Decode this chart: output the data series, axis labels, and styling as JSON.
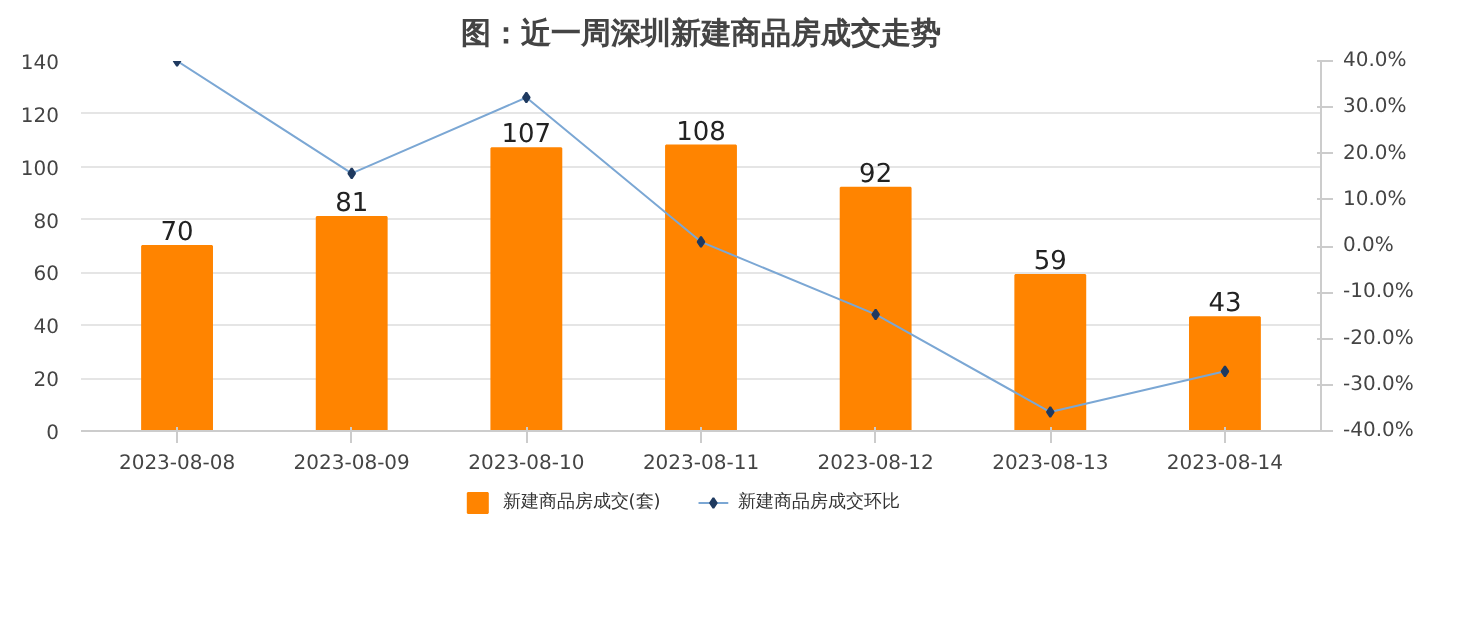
{
  "chart_data": {
    "type": "bar",
    "title": "图：近一周深圳新建商品房成交走势",
    "categories": [
      "2023-08-08",
      "2023-08-09",
      "2023-08-10",
      "2023-08-11",
      "2023-08-12",
      "2023-08-13",
      "2023-08-14"
    ],
    "series": [
      {
        "name": "新建商品房成交(套)",
        "color": "#ff8400",
        "values": [
          70,
          81,
          107,
          108,
          92,
          59,
          43
        ],
        "data_labels": true
      },
      {
        "name": "新建商品房成交环比",
        "type": "line",
        "axis": "y2",
        "color": "#7ba7d4",
        "marker": "diamond",
        "values": [
          40.0,
          15.7,
          32.1,
          0.9,
          -14.8,
          -35.9,
          -27.1
        ]
      }
    ],
    "ylim": [
      0,
      140
    ],
    "yticks": [
      0,
      20,
      40,
      60,
      80,
      100,
      120,
      140
    ],
    "y2lim": [
      -40,
      40
    ],
    "y2ticks": [
      {
        "value": -40,
        "label": "-40.0%"
      },
      {
        "value": -30,
        "label": "-30.0%"
      },
      {
        "value": -20,
        "label": "-20.0%"
      },
      {
        "value": -10,
        "label": "-10.0%"
      },
      {
        "value": 0,
        "label": "0.0%"
      },
      {
        "value": 10,
        "label": "10.0%"
      },
      {
        "value": 20,
        "label": "20.0%"
      },
      {
        "value": 30,
        "label": "30.0%"
      },
      {
        "value": 40,
        "label": "40.0%"
      }
    ],
    "grid": "y",
    "legend": "bottom"
  }
}
